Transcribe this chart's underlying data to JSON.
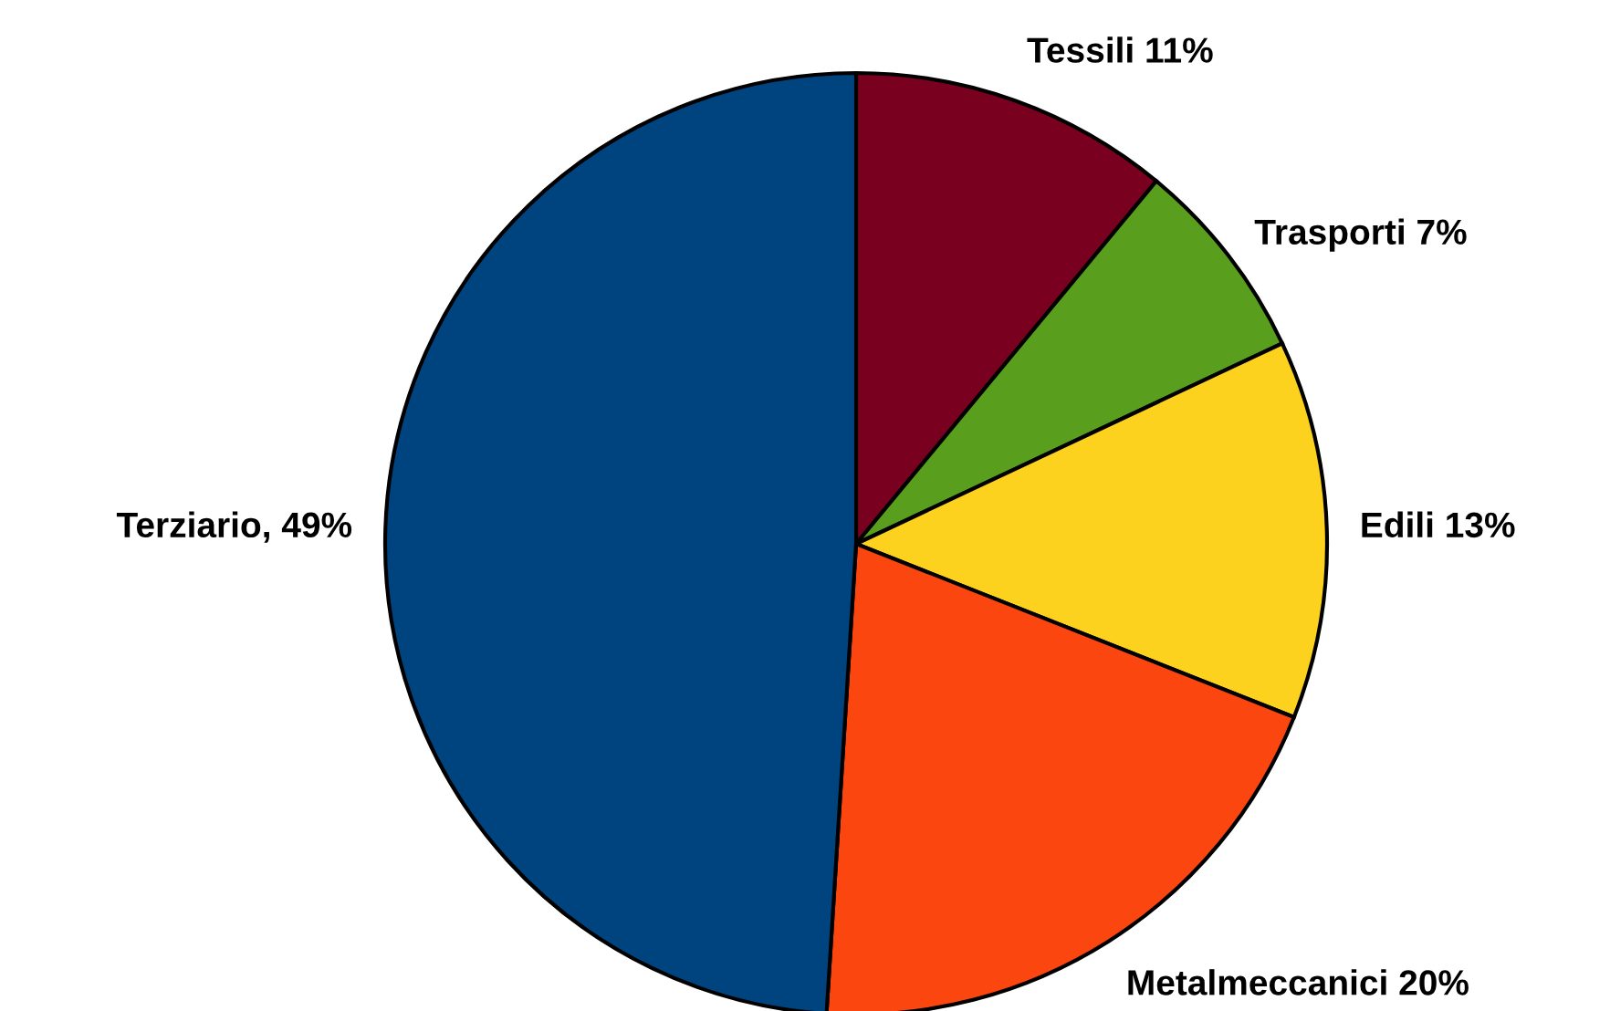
{
  "chart_data": {
    "type": "pie",
    "categories": [
      "Tessili 11%",
      "Trasporti 7%",
      "Edili 13%",
      "Metalmeccanici 20%",
      "Terziario, 49%"
    ],
    "values": [
      11,
      7,
      13,
      20,
      49
    ],
    "colors": [
      "#7a0020",
      "#5a9e1e",
      "#fcd21f",
      "#fb4610",
      "#00447f"
    ]
  }
}
